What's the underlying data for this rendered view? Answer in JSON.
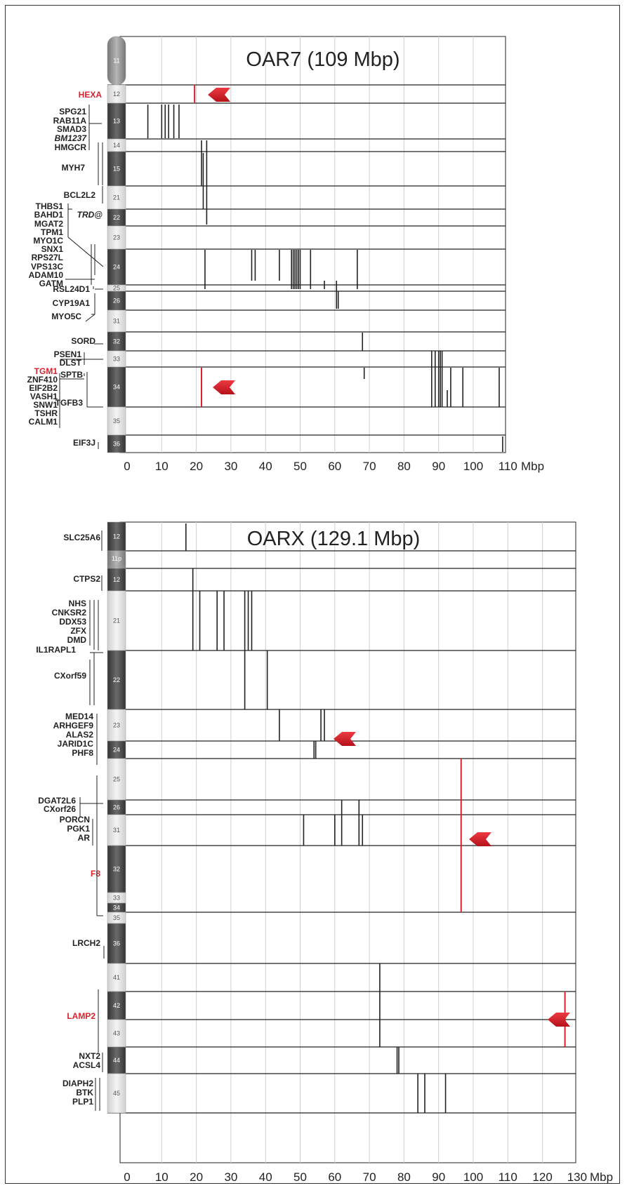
{
  "colors": {
    "marker": "#d9232d",
    "grid": "#d0d0d0",
    "line": "#222222"
  },
  "chart_data": [
    {
      "type": "diagram",
      "title": "OAR7 (109 Mbp)",
      "x_ticks": [
        "0",
        "10",
        "20",
        "30",
        "40",
        "50",
        "60",
        "70",
        "80",
        "90",
        "100",
        "110"
      ],
      "x_unit": "Mbp",
      "xlim": [
        0,
        110
      ],
      "bands": [
        {
          "label": "11",
          "shade": "grey"
        },
        {
          "label": "12",
          "shade": "light"
        },
        {
          "label": "13",
          "shade": "dark"
        },
        {
          "label": "14",
          "shade": "light"
        },
        {
          "label": "15",
          "shade": "dark"
        },
        {
          "label": "21",
          "shade": "light"
        },
        {
          "label": "22",
          "shade": "dark"
        },
        {
          "label": "23",
          "shade": "light"
        },
        {
          "label": "24",
          "shade": "dark"
        },
        {
          "label": "25",
          "shade": "light"
        },
        {
          "label": "26",
          "shade": "dark"
        },
        {
          "label": "31",
          "shade": "light"
        },
        {
          "label": "32",
          "shade": "dark"
        },
        {
          "label": "33",
          "shade": "light"
        },
        {
          "label": "34",
          "shade": "dark"
        },
        {
          "label": "35",
          "shade": "light"
        },
        {
          "label": "36",
          "shade": "dark"
        }
      ],
      "genes": [
        {
          "label": "HEXA",
          "red": true
        },
        {
          "label": "SPG21"
        },
        {
          "label": "RAB11A"
        },
        {
          "label": "SMAD3"
        },
        {
          "label": "BM1237",
          "italic": true
        },
        {
          "label": "HMGCR"
        },
        {
          "label": "MYH7"
        },
        {
          "label": "BCL2L2"
        },
        {
          "label": "THBS1"
        },
        {
          "label": "BAHD1"
        },
        {
          "label": "MGAT2"
        },
        {
          "label": "TPM1"
        },
        {
          "label": "TRD@",
          "italic": true
        },
        {
          "label": "MYO1C"
        },
        {
          "label": "SNX1"
        },
        {
          "label": "RPS27L"
        },
        {
          "label": "VPS13C"
        },
        {
          "label": "ADAM10"
        },
        {
          "label": "GATM"
        },
        {
          "label": "RSL24D1"
        },
        {
          "label": "CYP19A1"
        },
        {
          "label": "MYO5C"
        },
        {
          "label": "SORD"
        },
        {
          "label": "PSEN1"
        },
        {
          "label": "DLST"
        },
        {
          "label": "TGM1",
          "red": true
        },
        {
          "label": "SPTB"
        },
        {
          "label": "ZNF410"
        },
        {
          "label": "EIF2B2"
        },
        {
          "label": "VASH1"
        },
        {
          "label": "SNW1"
        },
        {
          "label": "TGFB3"
        },
        {
          "label": "TSHR"
        },
        {
          "label": "CALM1"
        },
        {
          "label": "EIF3J"
        }
      ],
      "red_markers_mbp": [
        19.5,
        21.5
      ]
    },
    {
      "type": "diagram",
      "title": "OARX (129.1 Mbp)",
      "x_ticks": [
        "0",
        "10",
        "20",
        "30",
        "40",
        "50",
        "60",
        "70",
        "80",
        "90",
        "100",
        "110",
        "120",
        "130"
      ],
      "x_unit": "Mbp",
      "xlim": [
        0,
        130
      ],
      "bands": [
        {
          "label": "12",
          "shade": "dark"
        },
        {
          "label": "11p",
          "shade": "grey"
        },
        {
          "label": "11q",
          "shade": "grey"
        },
        {
          "label": "12",
          "shade": "dark"
        },
        {
          "label": "21",
          "shade": "light"
        },
        {
          "label": "22",
          "shade": "dark"
        },
        {
          "label": "23",
          "shade": "light"
        },
        {
          "label": "24",
          "shade": "dark"
        },
        {
          "label": "25",
          "shade": "light"
        },
        {
          "label": "26",
          "shade": "dark"
        },
        {
          "label": "31",
          "shade": "light"
        },
        {
          "label": "32",
          "shade": "dark"
        },
        {
          "label": "33",
          "shade": "light"
        },
        {
          "label": "34",
          "shade": "dark"
        },
        {
          "label": "35",
          "shade": "light"
        },
        {
          "label": "36",
          "shade": "dark"
        },
        {
          "label": "41",
          "shade": "light"
        },
        {
          "label": "42",
          "shade": "dark"
        },
        {
          "label": "43",
          "shade": "light"
        },
        {
          "label": "44",
          "shade": "dark"
        },
        {
          "label": "45",
          "shade": "light"
        }
      ],
      "genes": [
        {
          "label": "SLC25A6"
        },
        {
          "label": "CTPS2"
        },
        {
          "label": "NHS"
        },
        {
          "label": "CNKSR2"
        },
        {
          "label": "DDX53"
        },
        {
          "label": "ZFX"
        },
        {
          "label": "DMD"
        },
        {
          "label": "IL1RAPL1"
        },
        {
          "label": "CXorf59"
        },
        {
          "label": "MED14"
        },
        {
          "label": "ARHGEF9"
        },
        {
          "label": "ALAS2"
        },
        {
          "label": "JARID1C"
        },
        {
          "label": "PHF8"
        },
        {
          "label": "DGAT2L6"
        },
        {
          "label": "CXorf26"
        },
        {
          "label": "PORCN"
        },
        {
          "label": "PGK1"
        },
        {
          "label": "AR"
        },
        {
          "label": "F8",
          "red": true
        },
        {
          "label": "LRCH2"
        },
        {
          "label": "LAMP2",
          "red": true
        },
        {
          "label": "NXT2"
        },
        {
          "label": "ACSL4"
        },
        {
          "label": "DIAPH2"
        },
        {
          "label": "BTK"
        },
        {
          "label": "PLP1"
        }
      ],
      "red_markers_mbp": [
        96.5,
        126.5
      ]
    }
  ]
}
